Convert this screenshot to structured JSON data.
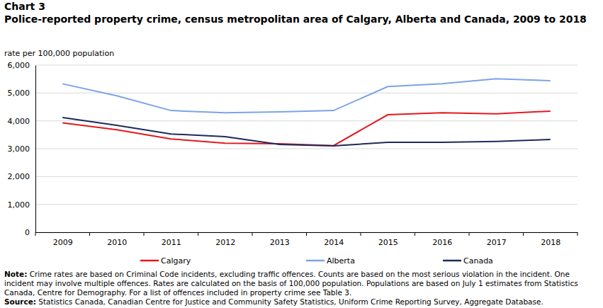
{
  "chart_data": {
    "type": "line",
    "chart_number": "Chart 3",
    "title": "Police-reported property crime, census metropolitan area of Calgary, Alberta and Canada, 2009 to 2018",
    "y_label": "rate per 100,000 population",
    "categories": [
      "2009",
      "2010",
      "2011",
      "2012",
      "2013",
      "2014",
      "2015",
      "2016",
      "2017",
      "2018"
    ],
    "series": [
      {
        "name": "Calgary",
        "color": "#e3191f",
        "values": [
          3930,
          3680,
          3350,
          3200,
          3180,
          3110,
          4220,
          4290,
          4250,
          4350
        ]
      },
      {
        "name": "Alberta",
        "color": "#7ba4e6",
        "values": [
          5330,
          4900,
          4370,
          4290,
          4320,
          4370,
          5230,
          5330,
          5510,
          5440
        ]
      },
      {
        "name": "Canada",
        "color": "#1c2b5a",
        "values": [
          4120,
          3840,
          3530,
          3430,
          3150,
          3100,
          3230,
          3230,
          3260,
          3330
        ]
      }
    ],
    "ylim": [
      0,
      6000
    ],
    "yticks": [
      0,
      {
        "value": 1000,
        "label": "1,000"
      },
      {
        "value": 2000,
        "label": "2,000"
      },
      {
        "value": 3000,
        "label": "3,000"
      },
      {
        "value": 4000,
        "label": "4,000"
      },
      {
        "value": 5000,
        "label": "5,000"
      },
      {
        "value": 6000,
        "label": "6,000"
      }
    ],
    "grid": true,
    "legend": "bottom",
    "note_label": "Note:",
    "note": "Crime rates are based on Criminal Code incidents, excluding traffic offences. Counts are based on the most serious violation in the incident. One incident may involve multiple offences. Rates are calculated on the basis of 100,000 population. Populations are based on July 1 estimates from Statistics Canada, Centre for Demography. For a list of offences included in property crime see Table 3.",
    "source_label": "Source:",
    "source": "Statistics Canada, Canadian Centre for Justice and Community Safety Statistics, Uniform Crime Reporting Survey, Aggregate Database."
  }
}
